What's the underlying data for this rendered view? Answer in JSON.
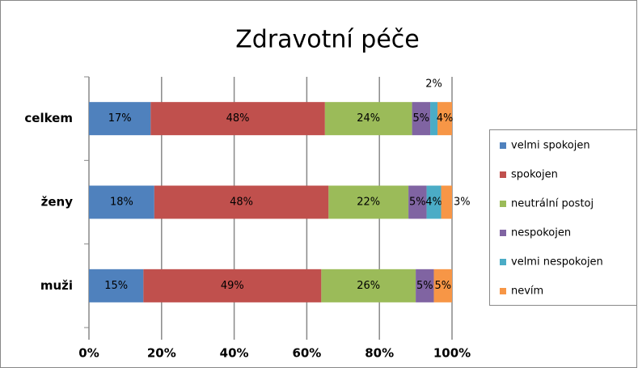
{
  "chart_data": {
    "type": "stacked-bar-horizontal",
    "title": "Zdravotní péče",
    "categories": [
      "celkem",
      "ženy",
      "muži"
    ],
    "series": [
      {
        "name": "velmi spokojen",
        "color": "#4f81bd",
        "values": [
          17,
          18,
          15
        ],
        "value_labels": [
          "17%",
          "18%",
          "15%"
        ]
      },
      {
        "name": "spokojen",
        "color": "#c0504d",
        "values": [
          48,
          48,
          49
        ],
        "value_labels": [
          "48%",
          "48%",
          "49%"
        ]
      },
      {
        "name": "neutrální postoj",
        "color": "#9bbb59",
        "values": [
          24,
          22,
          26
        ],
        "value_labels": [
          "24%",
          "22%",
          "26%"
        ]
      },
      {
        "name": "nespokojen",
        "color": "#8064a2",
        "values": [
          5,
          5,
          5
        ],
        "value_labels": [
          "5%",
          "5%",
          "5%"
        ]
      },
      {
        "name": "velmi nespokojen",
        "color": "#4bacc6",
        "values": [
          2,
          4,
          0
        ],
        "value_labels": [
          "2%",
          "4%",
          null
        ]
      },
      {
        "name": "nevím",
        "color": "#f79646",
        "values": [
          4,
          3,
          5
        ],
        "value_labels": [
          "4%",
          "3%",
          "5%"
        ]
      }
    ],
    "xlim": [
      0,
      100
    ],
    "xticks": [
      {
        "value": 0,
        "label": "0%"
      },
      {
        "value": 20,
        "label": "20%"
      },
      {
        "value": 40,
        "label": "40%"
      },
      {
        "value": 60,
        "label": "60%"
      },
      {
        "value": 80,
        "label": "80%"
      },
      {
        "value": 100,
        "label": "100%"
      }
    ],
    "grid": true,
    "legend": "right"
  }
}
